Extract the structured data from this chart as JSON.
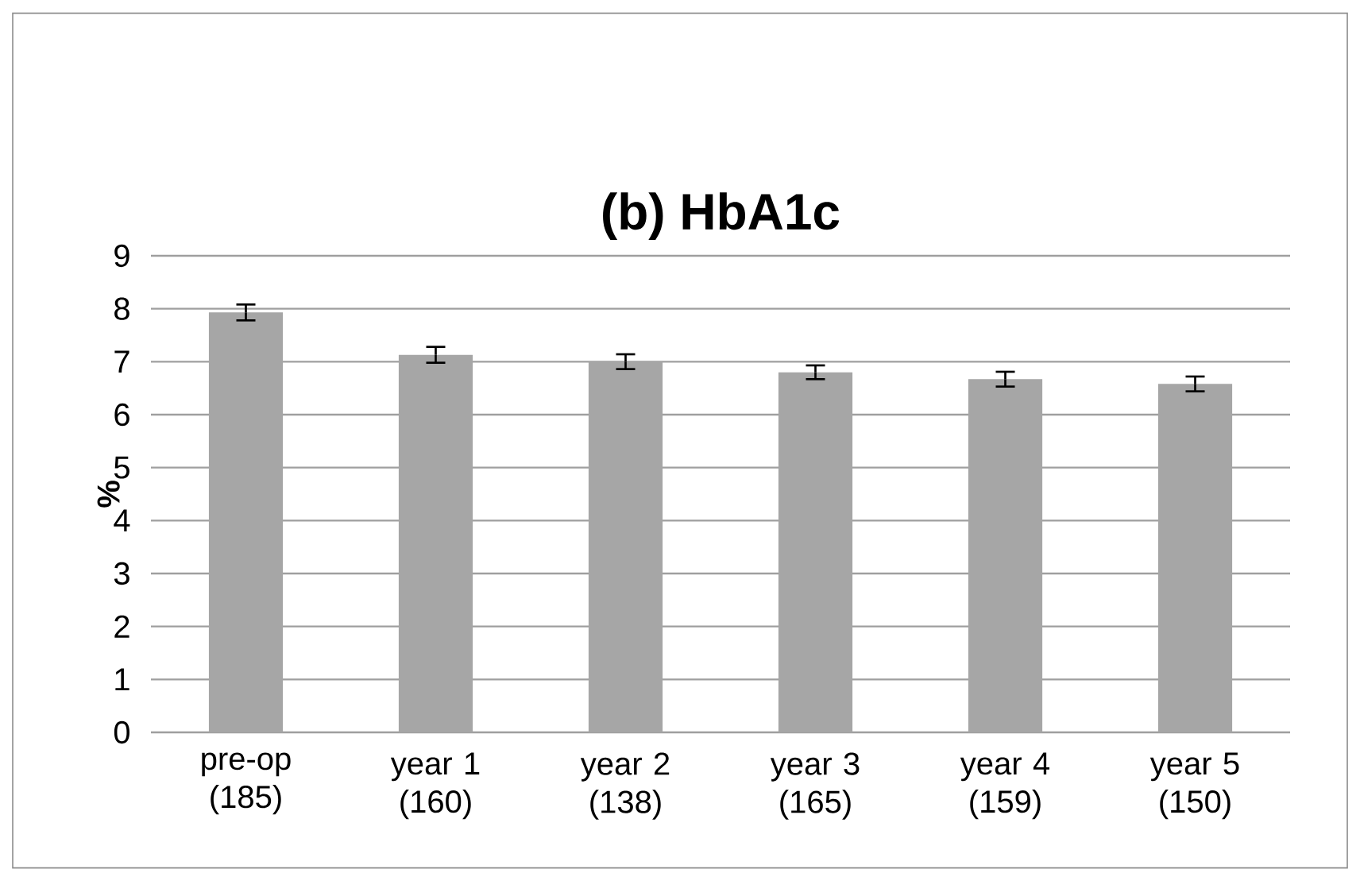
{
  "chart_data": {
    "type": "bar",
    "title": "(b) HbA1c",
    "ylabel": "%",
    "categories": [
      "pre-op (185)",
      "year 1 (160)",
      "year 2 (138)",
      "year 3 (165)",
      "year 4 (159)",
      "year 5 (150)"
    ],
    "values": [
      7.93,
      7.13,
      7.0,
      6.8,
      6.67,
      6.58
    ],
    "errors": [
      0.15,
      0.15,
      0.14,
      0.13,
      0.14,
      0.14
    ],
    "color": "#a6a6a6",
    "ylim": [
      0,
      9
    ],
    "yticks": [
      0,
      1,
      2,
      3,
      4,
      5,
      6,
      7,
      8,
      9
    ],
    "grid": "y"
  }
}
